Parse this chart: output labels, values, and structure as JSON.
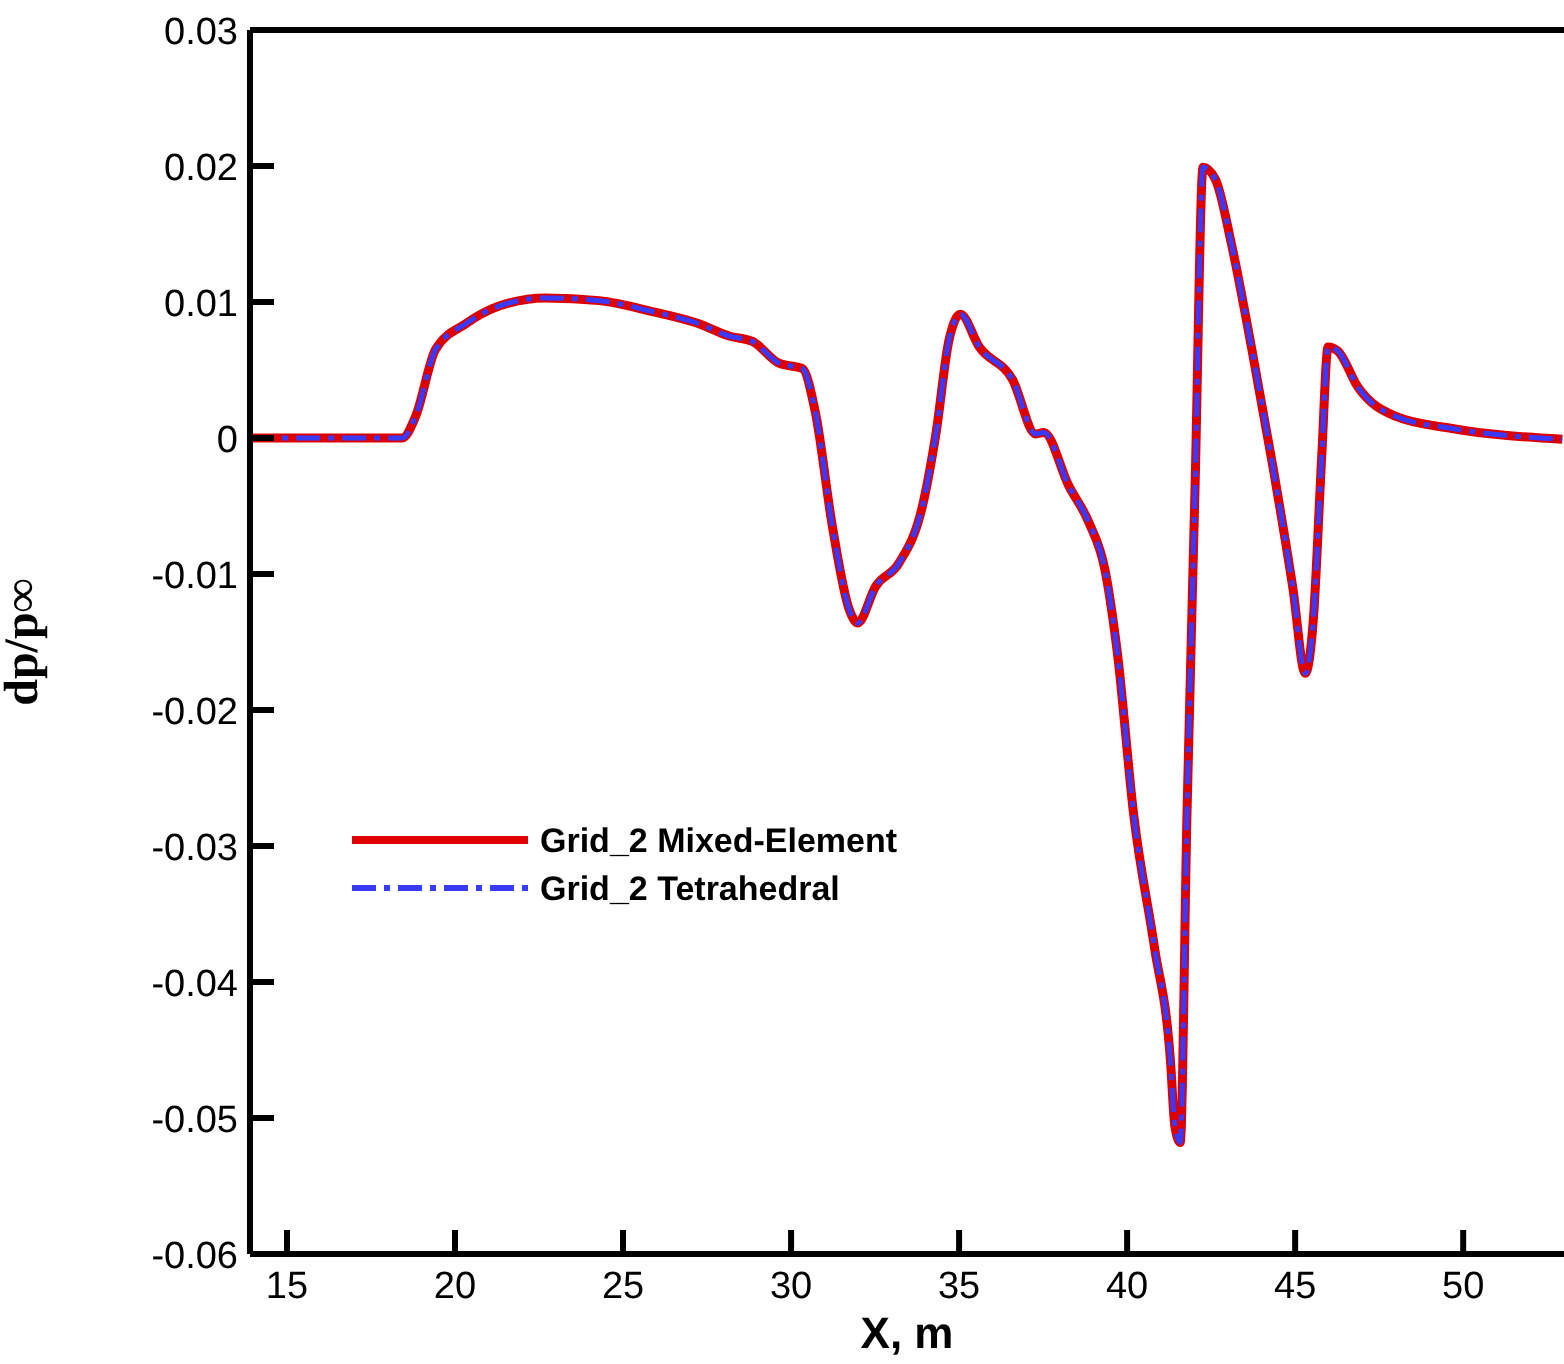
{
  "chart_data": {
    "type": "line",
    "xlabel": "X, m",
    "ylabel": "dp/p∞",
    "x": [
      13.9,
      18.43,
      18.83,
      19.42,
      20.32,
      21.31,
      22.7,
      24.29,
      25.87,
      27.26,
      28.15,
      28.85,
      29.64,
      30.34,
      30.73,
      31.23,
      31.73,
      31.98,
      32.52,
      33.21,
      33.91,
      34.31,
      34.7,
      35.04,
      35.6,
      36.59,
      37.28,
      37.52,
      38.26,
      38.86,
      39.35,
      39.71,
      40.2,
      40.81,
      41.29,
      41.42,
      41.58,
      41.78,
      42.02,
      42.26,
      42.63,
      43.11,
      43.72,
      44.33,
      44.93,
      45.3,
      45.54,
      45.79,
      45.98,
      46.27,
      46.88,
      47.98,
      49.67,
      52.95
    ],
    "series": [
      {
        "name": "Grid_2 Mixed-Element",
        "color": "#dd0000",
        "line_style": "solid",
        "values": [
          0,
          0,
          0.0016,
          0.0065,
          0.0084,
          0.0097,
          0.0103,
          0.0101,
          0.0093,
          0.0084,
          0.0075,
          0.0071,
          0.0055,
          0.0051,
          0.0018,
          -0.0065,
          -0.0126,
          -0.0136,
          -0.0109,
          -0.0092,
          -0.005,
          0.0003,
          0.0072,
          0.0091,
          0.0067,
          0.0043,
          0.0003,
          0.0004,
          -0.0035,
          -0.0062,
          -0.0098,
          -0.0158,
          -0.0278,
          -0.0374,
          -0.0458,
          -0.0506,
          -0.0518,
          -0.0278,
          -0.0038,
          0.0199,
          0.019,
          0.0142,
          0.0064,
          -0.002,
          -0.011,
          -0.0173,
          -0.0134,
          -0.0014,
          0.0067,
          0.0064,
          0.0037,
          0.0016,
          0.0007,
          -0.0001
        ]
      },
      {
        "name": "Grid_2 Tetrahedral",
        "color": "#3a3aff",
        "line_style": "dashed",
        "values": [
          0,
          0,
          0.0016,
          0.0065,
          0.0084,
          0.0097,
          0.0103,
          0.0101,
          0.0093,
          0.0084,
          0.0075,
          0.0071,
          0.0055,
          0.0051,
          0.0018,
          -0.0065,
          -0.0126,
          -0.0136,
          -0.0109,
          -0.0092,
          -0.005,
          0.0003,
          0.0072,
          0.0091,
          0.0067,
          0.0043,
          0.0003,
          0.0004,
          -0.0035,
          -0.0062,
          -0.0098,
          -0.0158,
          -0.0278,
          -0.0374,
          -0.0458,
          -0.0506,
          -0.0518,
          -0.0278,
          -0.0038,
          0.0199,
          0.019,
          0.0142,
          0.0064,
          -0.002,
          -0.011,
          -0.0173,
          -0.0134,
          -0.0014,
          0.0067,
          0.0064,
          0.0037,
          0.0016,
          0.0007,
          -0.0001
        ]
      }
    ],
    "xlim": [
      13.9,
      53
    ],
    "xticks": [
      15,
      20,
      25,
      30,
      35,
      40,
      45,
      50
    ],
    "ylim": [
      -0.06,
      0.03
    ],
    "yticks": [
      -0.06,
      -0.05,
      -0.04,
      -0.03,
      -0.02,
      -0.01,
      0,
      0.01,
      0.02,
      0.03
    ],
    "grid": false,
    "legend": "left",
    "marker": "none"
  }
}
